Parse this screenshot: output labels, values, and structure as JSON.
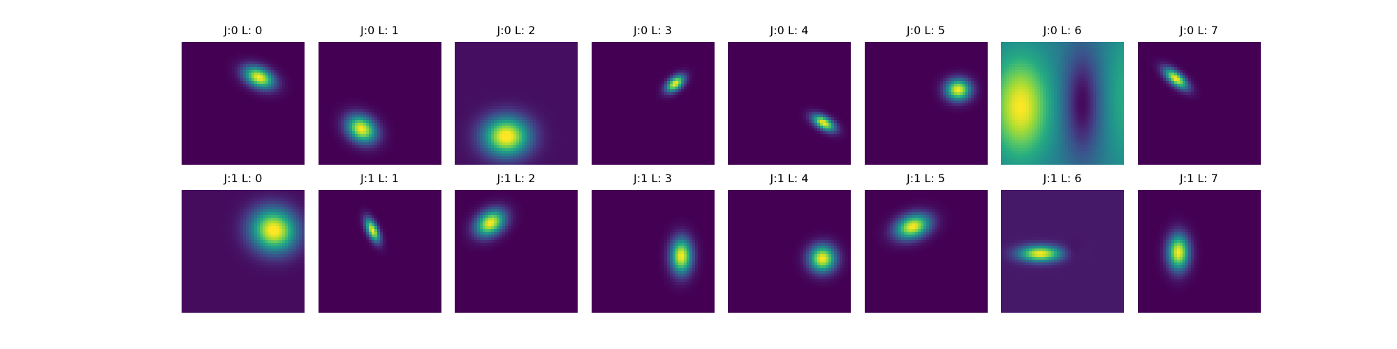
{
  "chart_data": {
    "type": "heatmap",
    "colormap": "viridis",
    "axes_visible": false,
    "grid": false,
    "legend": "none",
    "rows": 2,
    "cols": 8,
    "panels": [
      {
        "title": "J:0 L: 0",
        "background": 0.0,
        "blobs": [
          {
            "cx": 0.63,
            "cy": 0.29,
            "sx": 0.09,
            "sy": 0.055,
            "angle": 25,
            "peak": 1.0
          }
        ]
      },
      {
        "title": "J:0 L: 1",
        "background": 0.0,
        "blobs": [
          {
            "cx": 0.35,
            "cy": 0.71,
            "sx": 0.09,
            "sy": 0.07,
            "angle": 35,
            "peak": 1.0
          }
        ]
      },
      {
        "title": "J:0 L: 2",
        "background": 0.04,
        "blobs": [
          {
            "cx": 0.42,
            "cy": 0.77,
            "sx": 0.13,
            "sy": 0.11,
            "angle": 0,
            "peak": 1.0
          }
        ]
      },
      {
        "title": "J:0 L: 3",
        "background": 0.0,
        "blobs": [
          {
            "cx": 0.68,
            "cy": 0.34,
            "sx": 0.06,
            "sy": 0.035,
            "angle": -40,
            "peak": 1.0
          }
        ]
      },
      {
        "title": "J:0 L: 4",
        "background": 0.0,
        "blobs": [
          {
            "cx": 0.78,
            "cy": 0.66,
            "sx": 0.07,
            "sy": 0.035,
            "angle": 30,
            "peak": 1.0
          }
        ]
      },
      {
        "title": "J:0 L: 5",
        "background": 0.0,
        "blobs": [
          {
            "cx": 0.76,
            "cy": 0.39,
            "sx": 0.07,
            "sy": 0.06,
            "angle": 0,
            "peak": 1.0
          }
        ]
      },
      {
        "title": "J:0 L: 6",
        "background": 0.42,
        "blobs": [
          {
            "cx": 0.16,
            "cy": 0.53,
            "sx": 0.16,
            "sy": 0.28,
            "angle": 0,
            "peak": 0.58
          },
          {
            "cx": 0.66,
            "cy": 0.5,
            "sx": 0.1,
            "sy": 0.3,
            "angle": 0,
            "peak": -0.4
          },
          {
            "cx": 1.02,
            "cy": 0.45,
            "sx": 0.12,
            "sy": 0.4,
            "angle": 0,
            "peak": 0.2
          }
        ]
      },
      {
        "title": "J:0 L: 7",
        "background": 0.0,
        "blobs": [
          {
            "cx": 0.31,
            "cy": 0.3,
            "sx": 0.08,
            "sy": 0.035,
            "angle": 40,
            "peak": 1.0
          }
        ]
      },
      {
        "title": "J:1 L: 0",
        "background": 0.03,
        "blobs": [
          {
            "cx": 0.75,
            "cy": 0.33,
            "sx": 0.13,
            "sy": 0.12,
            "angle": 20,
            "peak": 1.0
          }
        ]
      },
      {
        "title": "J:1 L: 1",
        "background": 0.0,
        "blobs": [
          {
            "cx": 0.44,
            "cy": 0.33,
            "sx": 0.07,
            "sy": 0.03,
            "angle": 65,
            "peak": 1.0
          }
        ]
      },
      {
        "title": "J:1 L: 2",
        "background": 0.0,
        "blobs": [
          {
            "cx": 0.29,
            "cy": 0.27,
            "sx": 0.09,
            "sy": 0.065,
            "angle": -35,
            "peak": 1.0
          }
        ]
      },
      {
        "title": "J:1 L: 3",
        "background": 0.0,
        "blobs": [
          {
            "cx": 0.73,
            "cy": 0.54,
            "sx": 0.06,
            "sy": 0.1,
            "angle": 0,
            "peak": 1.0
          }
        ]
      },
      {
        "title": "J:1 L: 4",
        "background": 0.0,
        "blobs": [
          {
            "cx": 0.77,
            "cy": 0.56,
            "sx": 0.075,
            "sy": 0.075,
            "angle": 0,
            "peak": 1.0
          }
        ]
      },
      {
        "title": "J:1 L: 5",
        "background": 0.0,
        "blobs": [
          {
            "cx": 0.39,
            "cy": 0.3,
            "sx": 0.1,
            "sy": 0.065,
            "angle": -20,
            "peak": 1.0
          }
        ]
      },
      {
        "title": "J:1 L: 6",
        "background": 0.07,
        "blobs": [
          {
            "cx": 0.32,
            "cy": 0.52,
            "sx": 0.12,
            "sy": 0.045,
            "angle": 0,
            "peak": 0.93
          },
          {
            "cx": 0.57,
            "cy": 0.51,
            "sx": 0.05,
            "sy": 0.05,
            "angle": 0,
            "peak": -0.07
          }
        ]
      },
      {
        "title": "J:1 L: 7",
        "background": 0.0,
        "blobs": [
          {
            "cx": 0.33,
            "cy": 0.51,
            "sx": 0.06,
            "sy": 0.1,
            "angle": 0,
            "peak": 1.0
          }
        ]
      }
    ]
  }
}
